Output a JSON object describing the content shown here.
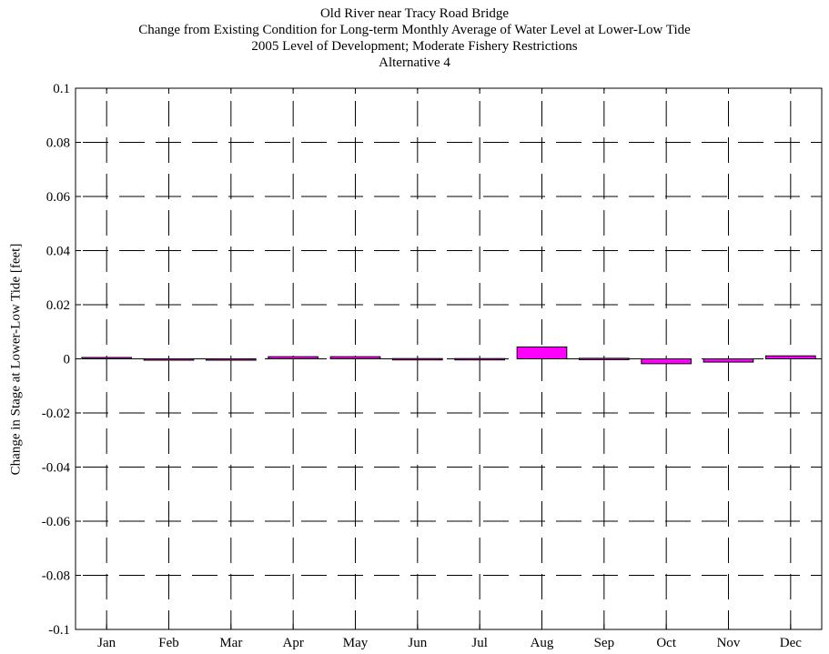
{
  "chart_data": {
    "type": "bar",
    "title_lines": [
      "Old River near Tracy Road Bridge",
      "Change from Existing Condition for Long-term Monthly Average of Water Level at Lower-Low Tide",
      "2005 Level of Development; Moderate Fishery Restrictions",
      "Alternative 4"
    ],
    "xlabel": "",
    "ylabel": "Change in Stage at Lower-Low Tide [feet]",
    "categories": [
      "Jan",
      "Feb",
      "Mar",
      "Apr",
      "May",
      "Jun",
      "Jul",
      "Aug",
      "Sep",
      "Oct",
      "Nov",
      "Dec"
    ],
    "values": [
      0.0005,
      -0.0003,
      -0.0003,
      0.0008,
      0.0008,
      0.0001,
      0.0001,
      0.0044,
      0.0002,
      -0.0018,
      -0.0012,
      0.0011
    ],
    "ylim": [
      -0.1,
      0.1
    ],
    "yticks": [
      -0.1,
      -0.08,
      -0.06,
      -0.04,
      -0.02,
      0,
      0.02,
      0.04,
      0.06,
      0.08,
      0.1
    ],
    "ytick_labels": [
      "-0.1",
      "-0.08",
      "-0.06",
      "-0.04",
      "-0.02",
      "0",
      "0.02",
      "0.04",
      "0.06",
      "0.08",
      "0.1"
    ],
    "grid": true,
    "bar_color": "#ff00ff",
    "edge_color": "#000000"
  }
}
